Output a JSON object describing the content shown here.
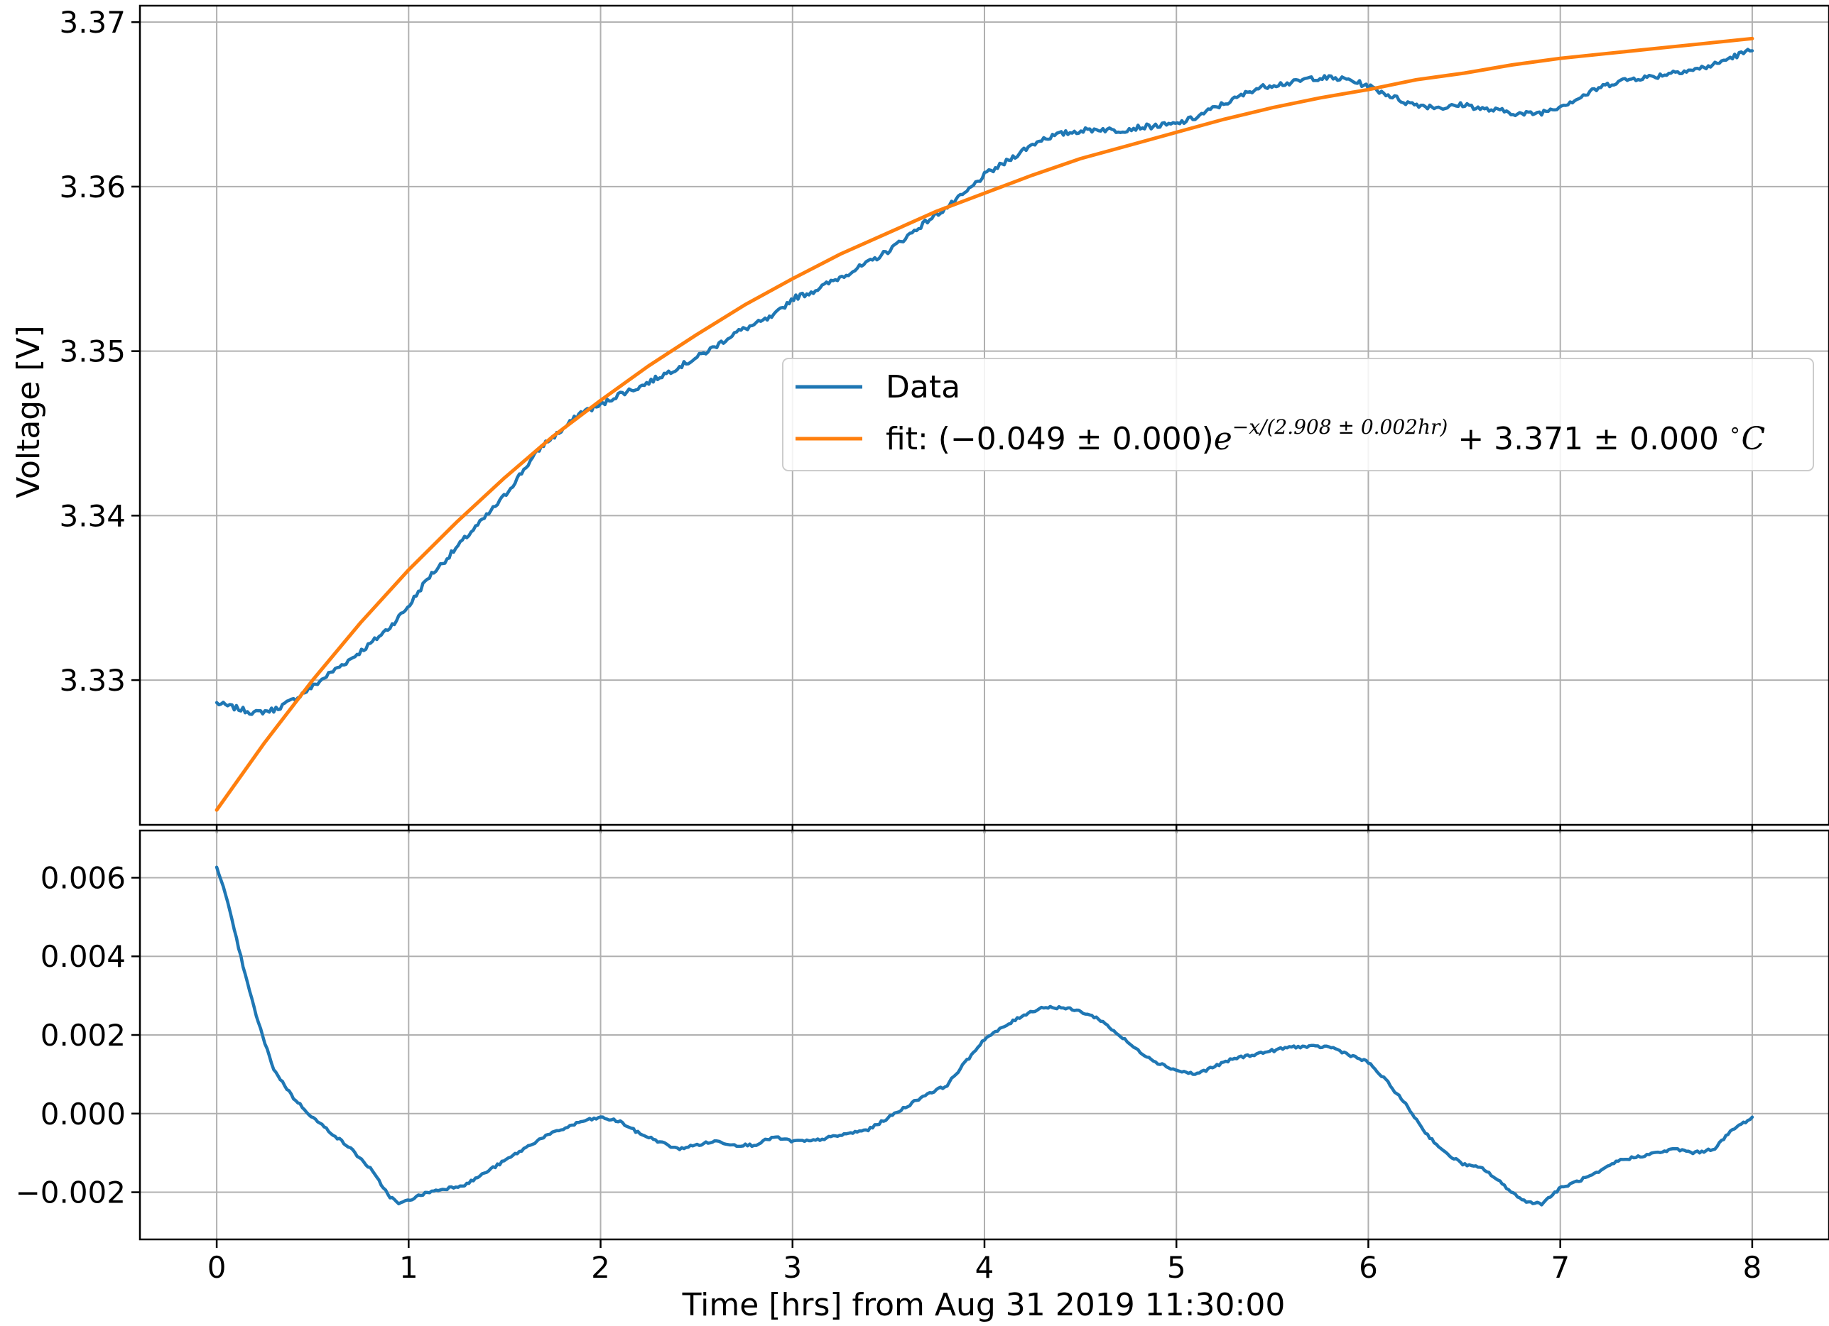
{
  "chart_data": [
    {
      "type": "line",
      "xlabel": "",
      "ylabel": "Voltage [V]",
      "xlim": [
        -0.4,
        8.4
      ],
      "ylim": [
        3.3212,
        3.371
      ],
      "grid": true,
      "legend": {
        "placement": "center-right"
      },
      "xticks": [
        0,
        1,
        2,
        3,
        4,
        5,
        6,
        7,
        8
      ],
      "yticks": [
        3.33,
        3.34,
        3.35,
        3.36,
        3.37
      ],
      "series": [
        {
          "name": "Data",
          "color": "#1f77b4",
          "points": [
            [
              0.0,
              3.3286
            ],
            [
              0.1,
              3.3283
            ],
            [
              0.2,
              3.328
            ],
            [
              0.3,
              3.3282
            ],
            [
              0.4,
              3.3288
            ],
            [
              0.5,
              3.3296
            ],
            [
              0.6,
              3.3305
            ],
            [
              0.7,
              3.3313
            ],
            [
              0.8,
              3.3322
            ],
            [
              0.9,
              3.3332
            ],
            [
              1.0,
              3.3345
            ],
            [
              1.1,
              3.3362
            ],
            [
              1.2,
              3.3374
            ],
            [
              1.3,
              3.3387
            ],
            [
              1.4,
              3.3399
            ],
            [
              1.5,
              3.3412
            ],
            [
              1.6,
              3.3428
            ],
            [
              1.7,
              3.3443
            ],
            [
              1.8,
              3.3452
            ],
            [
              1.9,
              3.3463
            ],
            [
              2.0,
              3.3467
            ],
            [
              2.1,
              3.3474
            ],
            [
              2.2,
              3.3478
            ],
            [
              2.3,
              3.3484
            ],
            [
              2.4,
              3.349
            ],
            [
              2.5,
              3.3496
            ],
            [
              2.6,
              3.3503
            ],
            [
              2.7,
              3.3511
            ],
            [
              2.8,
              3.3516
            ],
            [
              2.9,
              3.3521
            ],
            [
              3.0,
              3.3532
            ],
            [
              3.1,
              3.3536
            ],
            [
              3.2,
              3.3542
            ],
            [
              3.3,
              3.3548
            ],
            [
              3.4,
              3.3554
            ],
            [
              3.5,
              3.3561
            ],
            [
              3.6,
              3.357
            ],
            [
              3.7,
              3.3579
            ],
            [
              3.8,
              3.3587
            ],
            [
              3.9,
              3.3596
            ],
            [
              4.0,
              3.3607
            ],
            [
              4.1,
              3.3614
            ],
            [
              4.2,
              3.3622
            ],
            [
              4.3,
              3.3629
            ],
            [
              4.4,
              3.3632
            ],
            [
              4.5,
              3.3634
            ],
            [
              4.6,
              3.3635
            ],
            [
              4.7,
              3.3634
            ],
            [
              4.8,
              3.3636
            ],
            [
              4.9,
              3.3637
            ],
            [
              5.0,
              3.3638
            ],
            [
              5.1,
              3.3642
            ],
            [
              5.2,
              3.3648
            ],
            [
              5.3,
              3.3653
            ],
            [
              5.4,
              3.3659
            ],
            [
              5.5,
              3.3662
            ],
            [
              5.6,
              3.3663
            ],
            [
              5.7,
              3.3666
            ],
            [
              5.8,
              3.3666
            ],
            [
              5.9,
              3.3665
            ],
            [
              6.0,
              3.3661
            ],
            [
              6.1,
              3.3656
            ],
            [
              6.2,
              3.3651
            ],
            [
              6.3,
              3.3649
            ],
            [
              6.4,
              3.3648
            ],
            [
              6.5,
              3.365
            ],
            [
              6.6,
              3.3647
            ],
            [
              6.7,
              3.3646
            ],
            [
              6.8,
              3.3644
            ],
            [
              6.9,
              3.3645
            ],
            [
              7.0,
              3.3649
            ],
            [
              7.1,
              3.3654
            ],
            [
              7.2,
              3.366
            ],
            [
              7.3,
              3.3664
            ],
            [
              7.4,
              3.3666
            ],
            [
              7.5,
              3.3667
            ],
            [
              7.6,
              3.367
            ],
            [
              7.7,
              3.3671
            ],
            [
              7.8,
              3.3674
            ],
            [
              7.9,
              3.3679
            ],
            [
              8.0,
              3.3683
            ]
          ]
        },
        {
          "name": "fit",
          "legend_label": {
            "prefix": "fit: (−0.049 ± 0.000)",
            "base": "e",
            "exponent": "−x/(2.908 ± 0.002hr)",
            "suffix": " + 3.371 ± 0.000 ",
            "degree": "∘",
            "unit": "C"
          },
          "color": "#ff7f0e",
          "model": {
            "form": "a*exp(-x/tau)+c",
            "a": -0.049,
            "tau": 2.908,
            "c": 3.371
          },
          "points": [
            [
              0.0,
              3.3221
            ],
            [
              0.25,
              3.3262
            ],
            [
              0.5,
              3.33
            ],
            [
              0.75,
              3.3335
            ],
            [
              1.0,
              3.3367
            ],
            [
              1.25,
              3.3396
            ],
            [
              1.5,
              3.3423
            ],
            [
              1.75,
              3.3448
            ],
            [
              2.0,
              3.347
            ],
            [
              2.25,
              3.3491
            ],
            [
              2.5,
              3.351
            ],
            [
              2.75,
              3.3528
            ],
            [
              3.0,
              3.3544
            ],
            [
              3.25,
              3.3559
            ],
            [
              3.5,
              3.3572
            ],
            [
              3.75,
              3.3585
            ],
            [
              4.0,
              3.3596
            ],
            [
              4.25,
              3.3607
            ],
            [
              4.5,
              3.3617
            ],
            [
              4.75,
              3.3625
            ],
            [
              5.0,
              3.3633
            ],
            [
              5.25,
              3.3641
            ],
            [
              5.5,
              3.3648
            ],
            [
              5.75,
              3.3654
            ],
            [
              6.0,
              3.3659
            ],
            [
              6.25,
              3.3665
            ],
            [
              6.5,
              3.3669
            ],
            [
              6.75,
              3.3674
            ],
            [
              7.0,
              3.3678
            ],
            [
              7.25,
              3.3681
            ],
            [
              7.5,
              3.3684
            ],
            [
              7.75,
              3.3687
            ],
            [
              8.0,
              3.369
            ]
          ]
        }
      ]
    },
    {
      "type": "line",
      "xlabel": "Time [hrs] from Aug 31 2019 11:30:00",
      "ylabel": "",
      "xlim": [
        -0.4,
        8.4
      ],
      "ylim": [
        -0.0032,
        0.0072
      ],
      "grid": true,
      "xticks": [
        0,
        1,
        2,
        3,
        4,
        5,
        6,
        7,
        8
      ],
      "yticks": [
        -0.002,
        0.0,
        0.002,
        0.004,
        0.006
      ],
      "ytick_labels": [
        "−0.002",
        "0.000",
        "0.002",
        "0.004",
        "0.006"
      ],
      "series": [
        {
          "name": "",
          "color": "#1f77b4",
          "points": [
            [
              0.0,
              0.0063
            ],
            [
              0.05,
              0.0055
            ],
            [
              0.1,
              0.0045
            ],
            [
              0.15,
              0.0035
            ],
            [
              0.2,
              0.0026
            ],
            [
              0.25,
              0.0018
            ],
            [
              0.3,
              0.0011
            ],
            [
              0.4,
              0.0004
            ],
            [
              0.5,
              -0.0001
            ],
            [
              0.6,
              -0.0005
            ],
            [
              0.7,
              -0.0009
            ],
            [
              0.8,
              -0.0014
            ],
            [
              0.9,
              -0.0021
            ],
            [
              0.95,
              -0.0023
            ],
            [
              1.0,
              -0.0022
            ],
            [
              1.1,
              -0.002
            ],
            [
              1.2,
              -0.0019
            ],
            [
              1.3,
              -0.0018
            ],
            [
              1.4,
              -0.0015
            ],
            [
              1.5,
              -0.0012
            ],
            [
              1.6,
              -0.0009
            ],
            [
              1.7,
              -0.0006
            ],
            [
              1.8,
              -0.0004
            ],
            [
              1.9,
              -0.0002
            ],
            [
              2.0,
              -0.0001
            ],
            [
              2.1,
              -0.0002
            ],
            [
              2.2,
              -0.0005
            ],
            [
              2.3,
              -0.0007
            ],
            [
              2.4,
              -0.0009
            ],
            [
              2.5,
              -0.0008
            ],
            [
              2.6,
              -0.0007
            ],
            [
              2.7,
              -0.0008
            ],
            [
              2.8,
              -0.0008
            ],
            [
              2.9,
              -0.0006
            ],
            [
              3.0,
              -0.0007
            ],
            [
              3.1,
              -0.0007
            ],
            [
              3.2,
              -0.0006
            ],
            [
              3.3,
              -0.0005
            ],
            [
              3.4,
              -0.0004
            ],
            [
              3.5,
              -0.0001
            ],
            [
              3.6,
              0.0002
            ],
            [
              3.7,
              0.0005
            ],
            [
              3.8,
              0.0007
            ],
            [
              3.9,
              0.0013
            ],
            [
              4.0,
              0.0019
            ],
            [
              4.1,
              0.0022
            ],
            [
              4.2,
              0.0025
            ],
            [
              4.3,
              0.0027
            ],
            [
              4.4,
              0.0027
            ],
            [
              4.5,
              0.0026
            ],
            [
              4.6,
              0.0024
            ],
            [
              4.7,
              0.002
            ],
            [
              4.8,
              0.0016
            ],
            [
              4.9,
              0.0013
            ],
            [
              5.0,
              0.0011
            ],
            [
              5.1,
              0.001
            ],
            [
              5.2,
              0.0012
            ],
            [
              5.3,
              0.0014
            ],
            [
              5.4,
              0.0015
            ],
            [
              5.5,
              0.0016
            ],
            [
              5.6,
              0.0017
            ],
            [
              5.7,
              0.0017
            ],
            [
              5.8,
              0.0017
            ],
            [
              5.9,
              0.0015
            ],
            [
              6.0,
              0.0013
            ],
            [
              6.1,
              0.0008
            ],
            [
              6.2,
              0.0002
            ],
            [
              6.3,
              -0.0005
            ],
            [
              6.4,
              -0.001
            ],
            [
              6.5,
              -0.0013
            ],
            [
              6.6,
              -0.0014
            ],
            [
              6.7,
              -0.0018
            ],
            [
              6.8,
              -0.0022
            ],
            [
              6.9,
              -0.0023
            ],
            [
              7.0,
              -0.0019
            ],
            [
              7.1,
              -0.0017
            ],
            [
              7.2,
              -0.0015
            ],
            [
              7.3,
              -0.0012
            ],
            [
              7.4,
              -0.0011
            ],
            [
              7.5,
              -0.001
            ],
            [
              7.6,
              -0.0009
            ],
            [
              7.7,
              -0.001
            ],
            [
              7.8,
              -0.0009
            ],
            [
              7.9,
              -0.0004
            ],
            [
              8.0,
              -0.0001
            ]
          ]
        }
      ]
    }
  ]
}
